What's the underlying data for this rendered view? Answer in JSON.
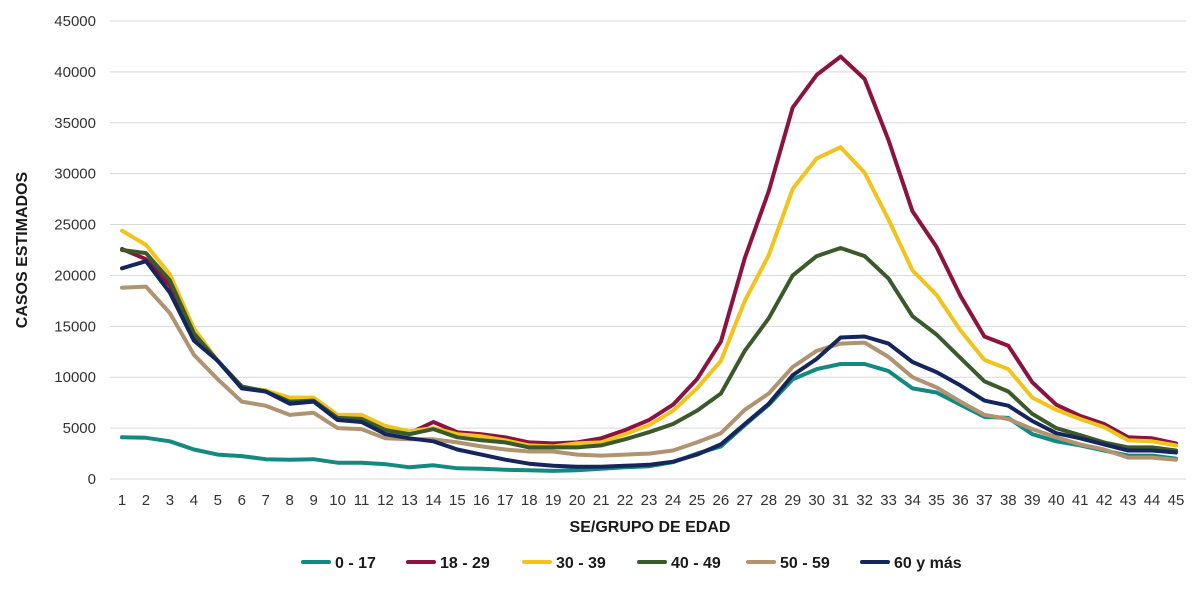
{
  "chart_data": {
    "type": "line",
    "title": "",
    "xlabel": "SE/GRUPO DE EDAD",
    "ylabel": "CASOS ESTIMADOS",
    "ylim": [
      0,
      45000
    ],
    "yticks": [
      0,
      5000,
      10000,
      15000,
      20000,
      25000,
      30000,
      35000,
      40000,
      45000
    ],
    "categories": [
      "1",
      "2",
      "3",
      "4",
      "5",
      "6",
      "7",
      "8",
      "9",
      "10",
      "11",
      "12",
      "13",
      "14",
      "15",
      "16",
      "17",
      "18",
      "19",
      "20",
      "21",
      "22",
      "23",
      "24",
      "25",
      "26",
      "27",
      "28",
      "29",
      "30",
      "31",
      "32",
      "33",
      "34",
      "35",
      "36",
      "37",
      "38",
      "39",
      "40",
      "41",
      "42",
      "43",
      "44",
      "45"
    ],
    "grid": true,
    "legend_position": "bottom",
    "series": [
      {
        "name": "0 - 17",
        "color": "#138a80",
        "values": [
          4100,
          4050,
          3700,
          2900,
          2400,
          2250,
          1950,
          1900,
          1950,
          1600,
          1600,
          1450,
          1150,
          1350,
          1050,
          1000,
          900,
          850,
          800,
          850,
          1000,
          1150,
          1250,
          1650,
          2500,
          3200,
          5300,
          7300,
          9800,
          10800,
          11300,
          11300,
          10600,
          8900,
          8500,
          7300,
          6100,
          6000,
          4400,
          3700,
          3300,
          2800,
          2300,
          2300,
          2000
        ]
      },
      {
        "name": "18 - 29",
        "color": "#8c1340",
        "values": [
          22600,
          21600,
          19000,
          14000,
          11600,
          9000,
          8700,
          7700,
          7900,
          6200,
          6100,
          5200,
          4500,
          5600,
          4600,
          4400,
          4100,
          3600,
          3500,
          3600,
          4000,
          4800,
          5800,
          7300,
          9800,
          13500,
          21700,
          28300,
          36500,
          39700,
          41500,
          39300,
          33300,
          26300,
          22800,
          18000,
          14000,
          13100,
          9500,
          7300,
          6200,
          5400,
          4100,
          4000,
          3500
        ]
      },
      {
        "name": "30 - 39",
        "color": "#f2c31b",
        "values": [
          24400,
          23000,
          20100,
          14800,
          11600,
          9000,
          8700,
          8000,
          8000,
          6300,
          6300,
          5200,
          4700,
          5000,
          4400,
          4200,
          3800,
          3300,
          3200,
          3500,
          3600,
          4400,
          5300,
          6700,
          8900,
          11600,
          17500,
          22000,
          28500,
          31500,
          32600,
          30100,
          25500,
          20500,
          18100,
          14600,
          11700,
          10800,
          8000,
          6800,
          5900,
          5100,
          3800,
          3700,
          3300
        ]
      },
      {
        "name": "40 - 49",
        "color": "#3a5a2b",
        "values": [
          22500,
          22200,
          19500,
          14300,
          11600,
          9100,
          8600,
          7600,
          7700,
          6000,
          5900,
          4800,
          4400,
          4900,
          4100,
          3800,
          3600,
          3100,
          3100,
          3100,
          3300,
          3900,
          4600,
          5400,
          6700,
          8400,
          12600,
          15800,
          20000,
          21900,
          22700,
          21900,
          19700,
          16000,
          14200,
          11900,
          9600,
          8600,
          6400,
          5000,
          4300,
          3600,
          3100,
          3100,
          2800
        ]
      },
      {
        "name": "50 - 59",
        "color": "#b09370",
        "values": [
          18800,
          18900,
          16300,
          12200,
          9800,
          7600,
          7200,
          6300,
          6500,
          5000,
          4900,
          4000,
          3900,
          3900,
          3600,
          3200,
          2900,
          2700,
          2700,
          2400,
          2300,
          2400,
          2500,
          2800,
          3600,
          4500,
          6800,
          8400,
          11000,
          12600,
          13300,
          13400,
          12000,
          10000,
          9000,
          7600,
          6300,
          5900,
          4900,
          4100,
          3400,
          2900,
          2100,
          2100,
          1900
        ]
      },
      {
        "name": "60 y más",
        "color": "#15265c",
        "values": [
          20700,
          21400,
          18300,
          13600,
          11600,
          8900,
          8600,
          7400,
          7600,
          5800,
          5600,
          4400,
          4000,
          3700,
          2900,
          2400,
          1900,
          1500,
          1300,
          1200,
          1200,
          1300,
          1400,
          1700,
          2400,
          3400,
          5400,
          7400,
          10200,
          11800,
          13900,
          14000,
          13300,
          11500,
          10500,
          9200,
          7700,
          7200,
          5700,
          4500,
          4000,
          3400,
          2800,
          2800,
          2600
        ]
      }
    ]
  }
}
